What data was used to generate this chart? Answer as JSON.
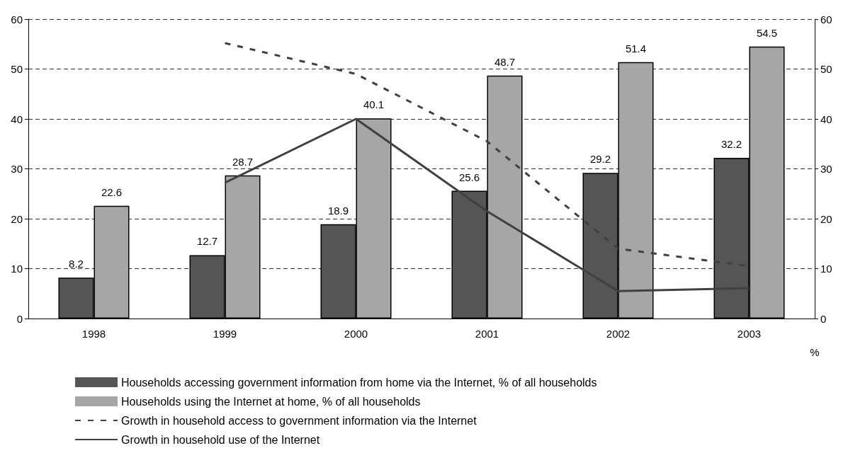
{
  "chart_data": {
    "type": "bar",
    "categories": [
      "1998",
      "1999",
      "2000",
      "2001",
      "2002",
      "2003"
    ],
    "series": [
      {
        "name": "Households accessing government information from home via the Internet, % of all households",
        "color": "#555555",
        "values": [
          8.2,
          12.7,
          18.9,
          25.6,
          29.2,
          32.2
        ],
        "value_labels": [
          "8.2",
          "12.7",
          "18.9",
          "25.6",
          "29.2",
          "32.2"
        ]
      },
      {
        "name": "Households using the Internet at home, % of all households",
        "color": "#a6a6a6",
        "values": [
          22.6,
          28.7,
          40.1,
          48.7,
          51.4,
          54.5
        ],
        "value_labels": [
          "22.6",
          "28.7",
          "40.1",
          "48.7",
          "51.4",
          "54.5"
        ]
      },
      {
        "name": "Growth in household access to government information via the Internet",
        "type": "line",
        "line_style": "dashed",
        "color": "#404040",
        "values": [
          null,
          55.2,
          49,
          35.5,
          14,
          10.5
        ]
      },
      {
        "name": "Growth in household use of the Internet",
        "type": "line",
        "line_style": "solid",
        "color": "#404040",
        "values": [
          null,
          27.2,
          40,
          21.5,
          5.5,
          6.1
        ]
      }
    ],
    "ylim": [
      0,
      60
    ],
    "yticks": [
      0,
      10,
      20,
      30,
      40,
      50,
      60
    ],
    "y2lim": [
      0,
      60
    ],
    "y2ticks": [
      0,
      10,
      20,
      30,
      40,
      50,
      60
    ],
    "y2label": "%",
    "grid": "y",
    "legend": "bottom",
    "marker": "none"
  }
}
